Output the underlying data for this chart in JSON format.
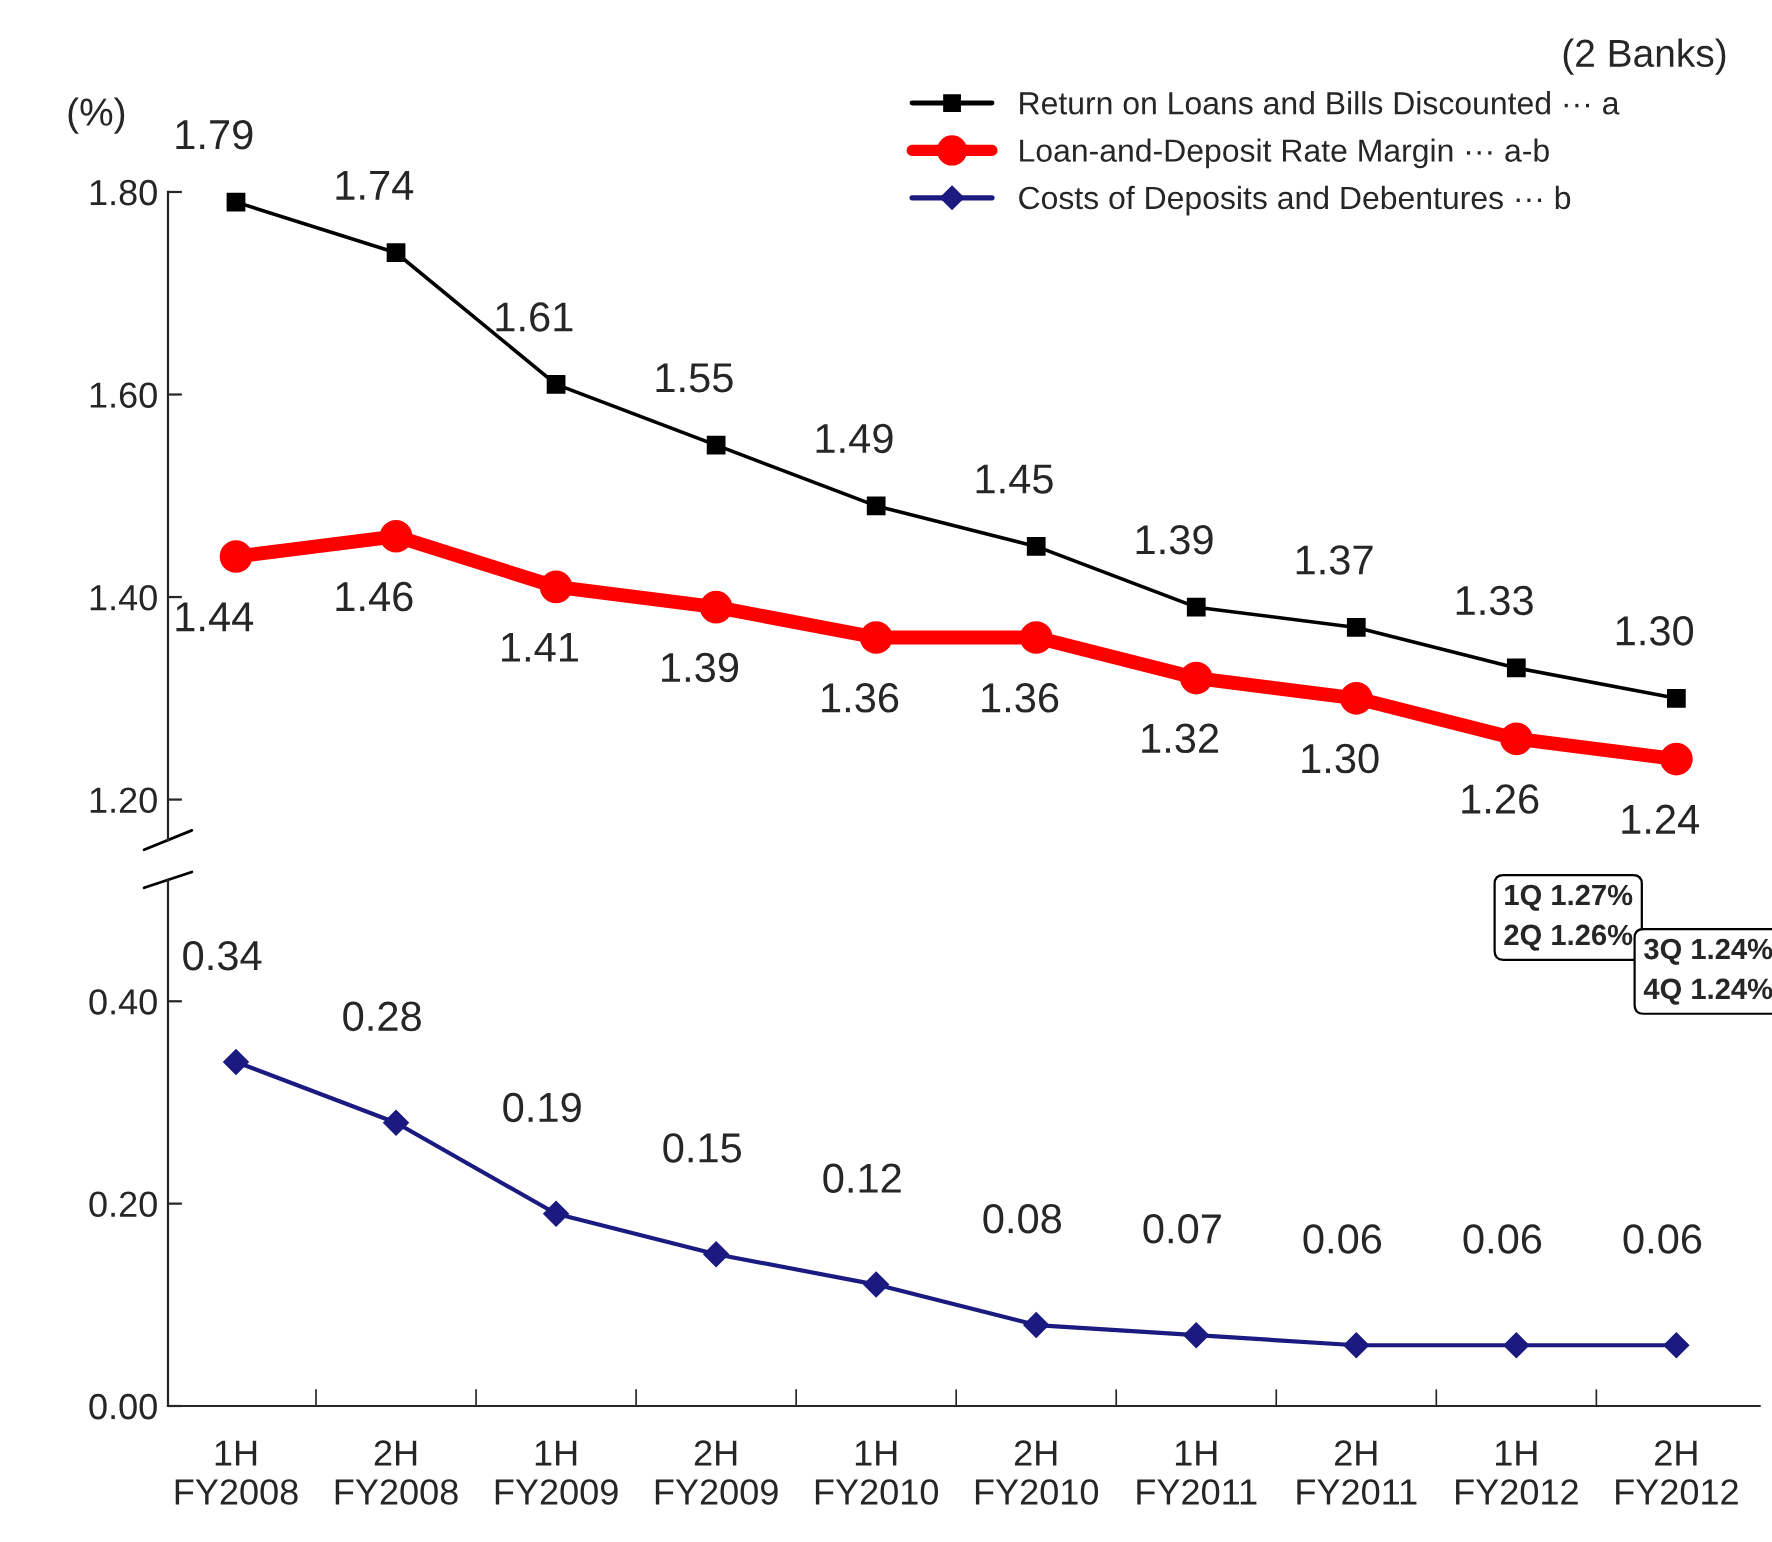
{
  "chart_data": [
    {
      "type": "line",
      "ylabel": "(%)",
      "ylim": [
        1.16,
        1.8
      ],
      "yticks": [
        {
          "value": 1.2,
          "label": "1.20"
        },
        {
          "value": 1.4,
          "label": "1.40"
        },
        {
          "value": 1.6,
          "label": "1.60"
        },
        {
          "value": 1.8,
          "label": "1.80"
        }
      ],
      "tick_labels": "y",
      "legend": "top right",
      "grid": false,
      "annotations": [
        "(2 Banks)",
        "1Q 1.27%\n2Q 1.26%",
        "3Q 1.24%\n4Q 1.24%"
      ],
      "series": [
        {
          "name": "Return on Loans and Bills Discounted ··· a",
          "color": "#000000",
          "marker": "square",
          "values": [
            1.79,
            1.74,
            1.61,
            1.55,
            1.49,
            1.45,
            1.39,
            1.37,
            1.33,
            1.3
          ],
          "value_labels": [
            "1.79",
            "1.74",
            "1.61",
            "1.55",
            "1.49",
            "1.45",
            "1.39",
            "1.37",
            "1.33",
            "1.30"
          ]
        },
        {
          "name": "Loan-and-Deposit Rate Margin ··· a-b",
          "color": "#ff0000",
          "marker": "circle",
          "values": [
            1.44,
            1.46,
            1.41,
            1.39,
            1.36,
            1.36,
            1.32,
            1.3,
            1.26,
            1.24
          ],
          "value_labels": [
            "1.44",
            "1.46",
            "1.41",
            "1.39",
            "1.36",
            "1.36",
            "1.32",
            "1.30",
            "1.26",
            "1.24"
          ]
        }
      ]
    },
    {
      "type": "line",
      "categories": [
        "1H\nFY2008",
        "2H\nFY2008",
        "1H\nFY2009",
        "2H\nFY2009",
        "1H\nFY2010",
        "2H\nFY2010",
        "1H\nFY2011",
        "2H\nFY2011",
        "1H\nFY2012",
        "2H\nFY2012"
      ],
      "ylim": [
        0.0,
        0.52
      ],
      "yticks": [
        {
          "value": 0.0,
          "label": "0.00"
        },
        {
          "value": 0.2,
          "label": "0.20"
        },
        {
          "value": 0.4,
          "label": "0.40"
        }
      ],
      "grid": false,
      "series": [
        {
          "name": "Costs of Deposits and Debentures ··· b",
          "color": "#1a1a80",
          "marker": "diamond",
          "values": [
            0.34,
            0.28,
            0.19,
            0.15,
            0.12,
            0.08,
            0.07,
            0.06,
            0.06,
            0.06
          ],
          "value_labels": [
            "0.34",
            "0.28",
            "0.19",
            "0.15",
            "0.12",
            "0.08",
            "0.07",
            "0.06",
            "0.06",
            "0.06"
          ]
        }
      ]
    }
  ]
}
